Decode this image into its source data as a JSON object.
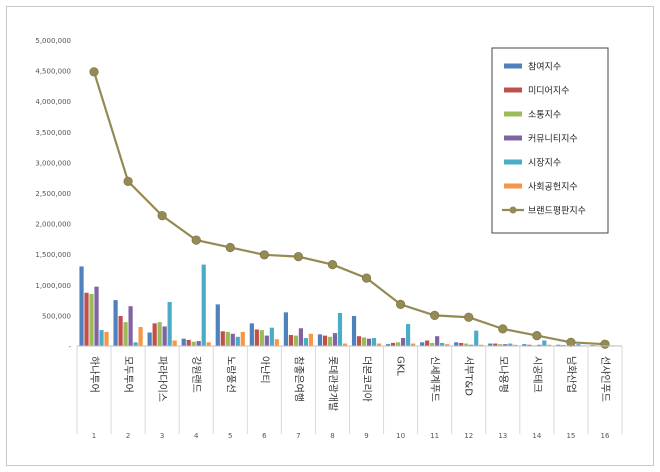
{
  "chart_data": {
    "type": "bar",
    "title": "",
    "xlabel": "",
    "ylabel": "",
    "ylim": [
      0,
      5000000
    ],
    "y_ticks": [
      "5,000,000",
      "4,500,000",
      "4,000,000",
      "3,500,000",
      "3,000,000",
      "2,500,000",
      "2,000,000",
      "1,500,000",
      "1,000,000",
      "500,000",
      "-"
    ],
    "grid": false,
    "legend_placement": "top-right",
    "categories": [
      "하나투어",
      "모두투어",
      "파라다이스",
      "강원랜드",
      "노랑풍선",
      "아난티",
      "참좋은여행",
      "롯데관광개발",
      "더본코리아",
      "GKL",
      "신세계푸드",
      "서부T&D",
      "모나용평",
      "시공테크",
      "남화산업",
      "선샤인푸드"
    ],
    "ranks": [
      "1",
      "2",
      "3",
      "4",
      "5",
      "6",
      "7",
      "8",
      "9",
      "10",
      "11",
      "12",
      "13",
      "14",
      "15",
      "16"
    ],
    "series": [
      {
        "name": "참여지수",
        "color": "#4f81bd",
        "values": [
          1300000,
          750000,
          220000,
          120000,
          680000,
          370000,
          550000,
          190000,
          490000,
          30000,
          60000,
          60000,
          40000,
          30000,
          20000,
          15000
        ]
      },
      {
        "name": "미디어지수",
        "color": "#c0504d",
        "values": [
          870000,
          490000,
          370000,
          100000,
          240000,
          270000,
          180000,
          170000,
          160000,
          50000,
          90000,
          50000,
          40000,
          20000,
          15000,
          10000
        ]
      },
      {
        "name": "소통지수",
        "color": "#9bbb59",
        "values": [
          850000,
          390000,
          390000,
          70000,
          230000,
          260000,
          170000,
          150000,
          140000,
          60000,
          50000,
          40000,
          30000,
          10000,
          10000,
          10000
        ]
      },
      {
        "name": "커뮤니티지수",
        "color": "#8064a2",
        "values": [
          970000,
          650000,
          320000,
          80000,
          200000,
          170000,
          290000,
          210000,
          120000,
          130000,
          160000,
          20000,
          30000,
          20000,
          15000,
          10000
        ]
      },
      {
        "name": "시장지수",
        "color": "#4bacc6",
        "values": [
          260000,
          60000,
          720000,
          1330000,
          150000,
          300000,
          130000,
          540000,
          130000,
          360000,
          50000,
          250000,
          40000,
          90000,
          30000,
          10000
        ]
      },
      {
        "name": "사회공헌지수",
        "color": "#f79646",
        "values": [
          230000,
          310000,
          90000,
          60000,
          230000,
          110000,
          200000,
          40000,
          40000,
          40000,
          30000,
          20000,
          20000,
          20000,
          10000,
          5000
        ]
      },
      {
        "name": "브랜드평판지수",
        "color": "#948a54",
        "type": "line",
        "values": [
          4480000,
          2690000,
          2130000,
          1730000,
          1610000,
          1490000,
          1460000,
          1330000,
          1110000,
          680000,
          500000,
          470000,
          280000,
          170000,
          60000,
          30000
        ]
      }
    ]
  }
}
